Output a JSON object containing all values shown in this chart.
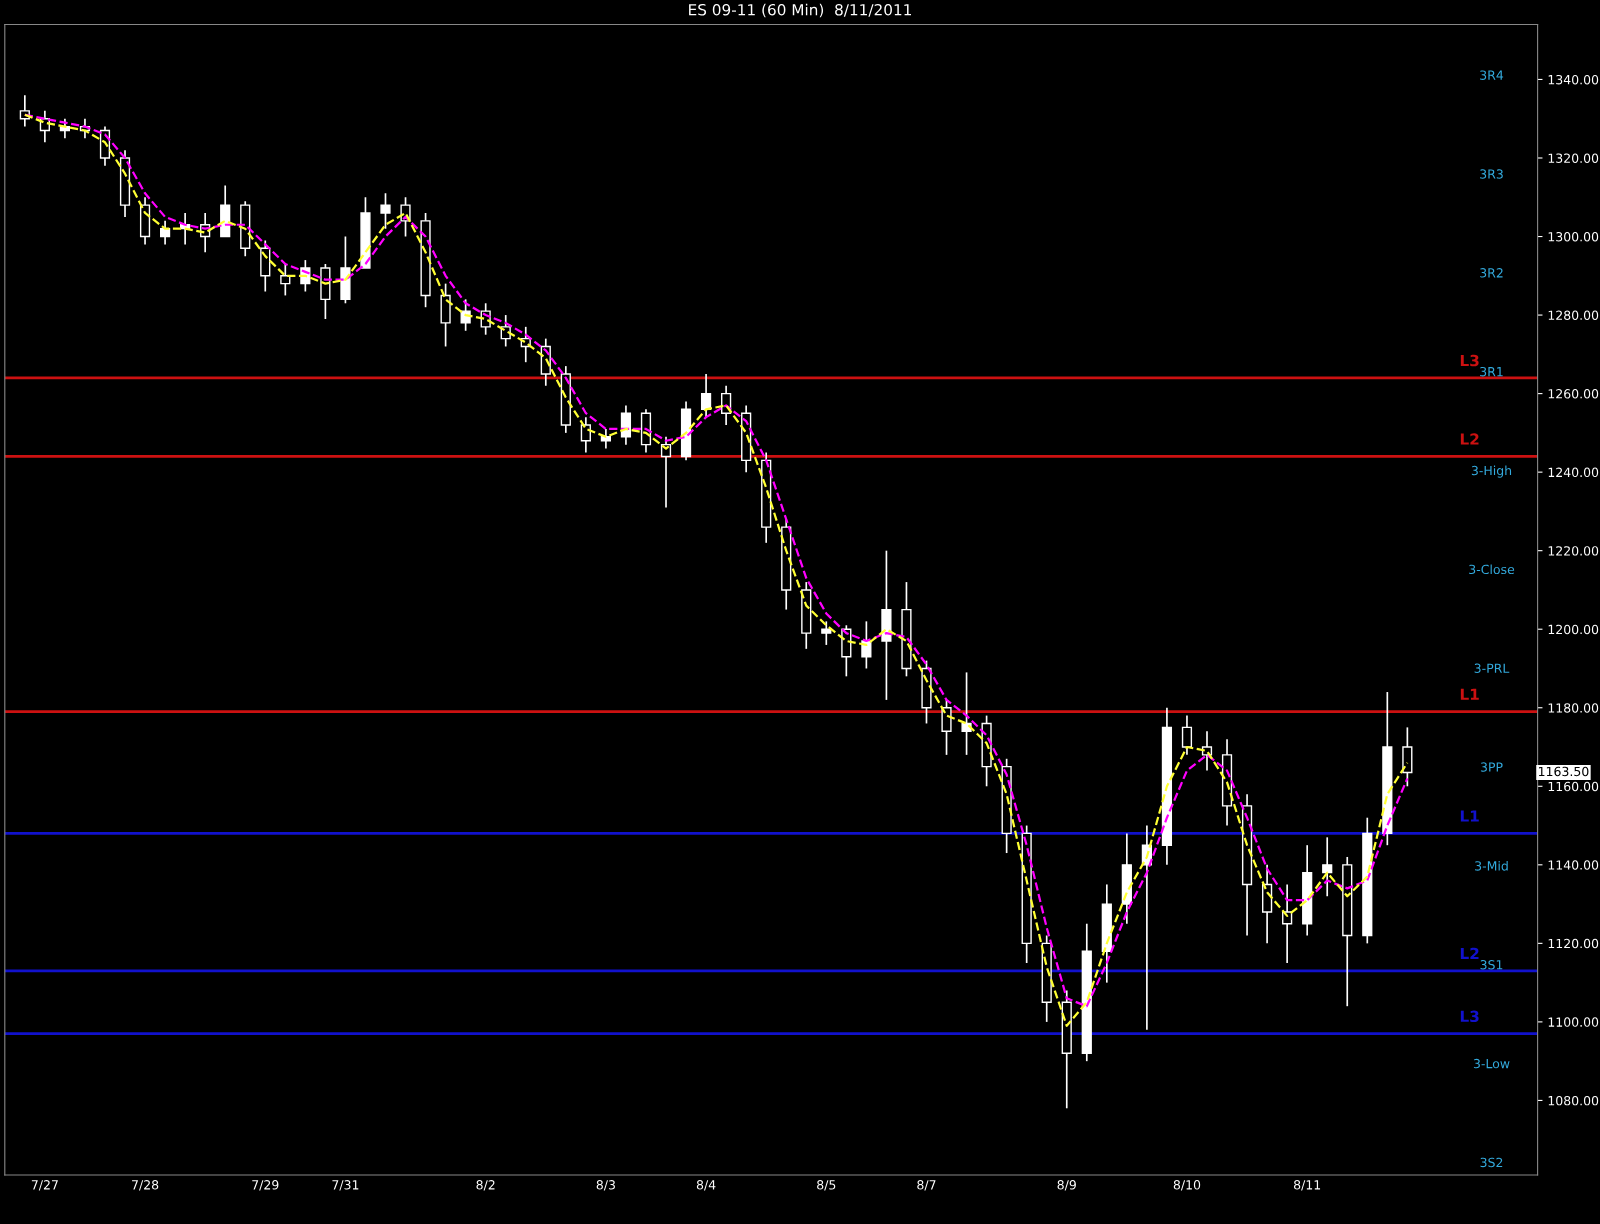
{
  "chart_data": {
    "type": "candlestick",
    "title": "ES 09-11 (60 Min)  8/11/2011",
    "categories": [
      null,
      "7/27",
      null,
      null,
      null,
      null,
      "7/28",
      null,
      null,
      null,
      null,
      null,
      "7/29",
      null,
      null,
      null,
      "7/31",
      null,
      null,
      null,
      null,
      null,
      null,
      "8/2",
      null,
      null,
      null,
      null,
      null,
      "8/3",
      null,
      null,
      null,
      null,
      "8/4",
      null,
      null,
      null,
      null,
      null,
      "8/5",
      null,
      null,
      null,
      null,
      "8/7",
      null,
      null,
      null,
      null,
      null,
      null,
      "8/9",
      null,
      null,
      null,
      null,
      null,
      "8/10",
      null,
      null,
      null,
      null,
      null,
      "8/11",
      null,
      null,
      null,
      null,
      null
    ],
    "ohlc": [
      [
        1332,
        1336,
        1328,
        1330
      ],
      [
        1330,
        1332,
        1324,
        1327
      ],
      [
        1327,
        1330,
        1325,
        1328
      ],
      [
        1328,
        1330,
        1325,
        1327
      ],
      [
        1327,
        1328,
        1318,
        1320
      ],
      [
        1320,
        1322,
        1305,
        1308
      ],
      [
        1308,
        1310,
        1298,
        1300
      ],
      [
        1300,
        1304,
        1298,
        1302
      ],
      [
        1302,
        1306,
        1298,
        1303
      ],
      [
        1303,
        1306,
        1296,
        1300
      ],
      [
        1300,
        1313,
        1300,
        1308
      ],
      [
        1308,
        1309,
        1295,
        1297
      ],
      [
        1297,
        1299,
        1286,
        1290
      ],
      [
        1290,
        1293,
        1285,
        1288
      ],
      [
        1288,
        1294,
        1286,
        1292
      ],
      [
        1292,
        1293,
        1279,
        1284
      ],
      [
        1284,
        1300,
        1283,
        1292
      ],
      [
        1292,
        1310,
        1292,
        1306
      ],
      [
        1306,
        1311,
        1302,
        1308
      ],
      [
        1308,
        1310,
        1300,
        1304
      ],
      [
        1304,
        1306,
        1282,
        1285
      ],
      [
        1285,
        1288,
        1272,
        1278
      ],
      [
        1278,
        1284,
        1276,
        1281
      ],
      [
        1281,
        1283,
        1275,
        1277
      ],
      [
        1277,
        1280,
        1272,
        1274
      ],
      [
        1274,
        1277,
        1268,
        1272
      ],
      [
        1272,
        1274,
        1262,
        1265
      ],
      [
        1265,
        1267,
        1250,
        1252
      ],
      [
        1252,
        1254,
        1245,
        1248
      ],
      [
        1248,
        1251,
        1246,
        1249
      ],
      [
        1249,
        1257,
        1247,
        1255
      ],
      [
        1255,
        1256,
        1245,
        1247
      ],
      [
        1247,
        1249,
        1231,
        1244
      ],
      [
        1244,
        1258,
        1243,
        1256
      ],
      [
        1256,
        1265,
        1254,
        1260
      ],
      [
        1260,
        1262,
        1252,
        1255
      ],
      [
        1255,
        1257,
        1240,
        1243
      ],
      [
        1243,
        1245,
        1222,
        1226
      ],
      [
        1226,
        1228,
        1205,
        1210
      ],
      [
        1210,
        1212,
        1195,
        1199
      ],
      [
        1199,
        1202,
        1196,
        1200
      ],
      [
        1200,
        1201,
        1188,
        1193
      ],
      [
        1193,
        1202,
        1190,
        1197
      ],
      [
        1197,
        1220,
        1182,
        1205
      ],
      [
        1205,
        1212,
        1188,
        1190
      ],
      [
        1190,
        1192,
        1176,
        1180
      ],
      [
        1180,
        1182,
        1168,
        1174
      ],
      [
        1174,
        1189,
        1168,
        1176
      ],
      [
        1176,
        1178,
        1160,
        1165
      ],
      [
        1165,
        1167,
        1143,
        1148
      ],
      [
        1148,
        1150,
        1115,
        1120
      ],
      [
        1120,
        1122,
        1100,
        1105
      ],
      [
        1105,
        1108,
        1078,
        1092
      ],
      [
        1092,
        1125,
        1090,
        1118
      ],
      [
        1118,
        1135,
        1110,
        1130
      ],
      [
        1130,
        1148,
        1125,
        1140
      ],
      [
        1140,
        1150,
        1098,
        1145
      ],
      [
        1145,
        1180,
        1140,
        1175
      ],
      [
        1175,
        1178,
        1168,
        1170
      ],
      [
        1170,
        1174,
        1164,
        1168
      ],
      [
        1168,
        1172,
        1150,
        1155
      ],
      [
        1155,
        1158,
        1122,
        1135
      ],
      [
        1135,
        1140,
        1120,
        1128
      ],
      [
        1128,
        1135,
        1115,
        1125
      ],
      [
        1125,
        1145,
        1122,
        1138
      ],
      [
        1138,
        1147,
        1132,
        1140
      ],
      [
        1140,
        1142,
        1104,
        1122
      ],
      [
        1122,
        1152,
        1120,
        1148
      ],
      [
        1148,
        1184,
        1145,
        1170
      ],
      [
        1170,
        1175,
        1160,
        1163.5
      ]
    ],
    "series": [
      {
        "type": "line",
        "color": "#ff00ff",
        "line_style": "dashed",
        "values": [
          1331,
          1330,
          1329,
          1328,
          1326,
          1320,
          1311,
          1305,
          1303,
          1302,
          1303,
          1303,
          1298,
          1293,
          1291,
          1289,
          1289,
          1293,
          1300,
          1305,
          1300,
          1290,
          1283,
          1280,
          1278,
          1275,
          1271,
          1264,
          1255,
          1251,
          1251,
          1251,
          1248,
          1249,
          1254,
          1257,
          1253,
          1243,
          1228,
          1213,
          1204,
          1199,
          1197,
          1199,
          1198,
          1191,
          1182,
          1178,
          1173,
          1163,
          1145,
          1124,
          1106,
          1104,
          1115,
          1128,
          1138,
          1152,
          1164,
          1168,
          1164,
          1152,
          1139,
          1131,
          1131,
          1136,
          1134,
          1136,
          1150,
          1162
        ]
      },
      {
        "type": "line",
        "color": "#ffff33",
        "line_style": "dashed",
        "values": [
          1331,
          1329,
          1328,
          1327,
          1324,
          1316,
          1306,
          1302,
          1302,
          1301,
          1304,
          1302,
          1295,
          1290,
          1290,
          1288,
          1289,
          1296,
          1303,
          1306,
          1296,
          1284,
          1280,
          1279,
          1276,
          1273,
          1269,
          1259,
          1251,
          1249,
          1251,
          1250,
          1246,
          1250,
          1256,
          1257,
          1250,
          1236,
          1220,
          1206,
          1201,
          1197,
          1196,
          1200,
          1197,
          1187,
          1178,
          1176,
          1171,
          1158,
          1136,
          1114,
          1099,
          1105,
          1120,
          1133,
          1142,
          1160,
          1170,
          1169,
          1161,
          1145,
          1133,
          1127,
          1131,
          1138,
          1132,
          1137,
          1158,
          1166
        ]
      }
    ],
    "ylim": [
      1061,
      1354
    ],
    "yticks": [
      {
        "value": 1080,
        "label": "1080.00"
      },
      {
        "value": 1100,
        "label": "1100.00"
      },
      {
        "value": 1120,
        "label": "1120.00"
      },
      {
        "value": 1140,
        "label": "1140.00"
      },
      {
        "value": 1160,
        "label": "1160.00"
      },
      {
        "value": 1180,
        "label": "1180.00"
      },
      {
        "value": 1200,
        "label": "1200.00"
      },
      {
        "value": 1220,
        "label": "1220.00"
      },
      {
        "value": 1240,
        "label": "1240.00"
      },
      {
        "value": 1260,
        "label": "1260.00"
      },
      {
        "value": 1280,
        "label": "1280.00"
      },
      {
        "value": 1300,
        "label": "1300.00"
      },
      {
        "value": 1320,
        "label": "1320.00"
      },
      {
        "value": 1340,
        "label": "1340.00"
      }
    ],
    "ref_lines": [
      {
        "axis": "y",
        "value": 1264,
        "label": "L3",
        "color": "#cc1111"
      },
      {
        "axis": "y",
        "value": 1244,
        "label": "L2",
        "color": "#cc1111"
      },
      {
        "axis": "y",
        "value": 1179,
        "label": "L1",
        "color": "#cc1111"
      },
      {
        "axis": "y",
        "value": 1148,
        "label": "L1",
        "color": "#1111cc"
      },
      {
        "axis": "y",
        "value": 1113,
        "label": "L2",
        "color": "#1111cc"
      },
      {
        "axis": "y",
        "value": 1097,
        "label": "L3",
        "color": "#1111cc"
      }
    ],
    "annotations": [
      "3R4",
      "3R3",
      "3R2",
      "3R1",
      "3-High",
      "3-Close",
      "3-PRL",
      "3PP",
      "3-Mid",
      "3S1",
      "3-Low",
      "3S2",
      "1163.50"
    ]
  }
}
